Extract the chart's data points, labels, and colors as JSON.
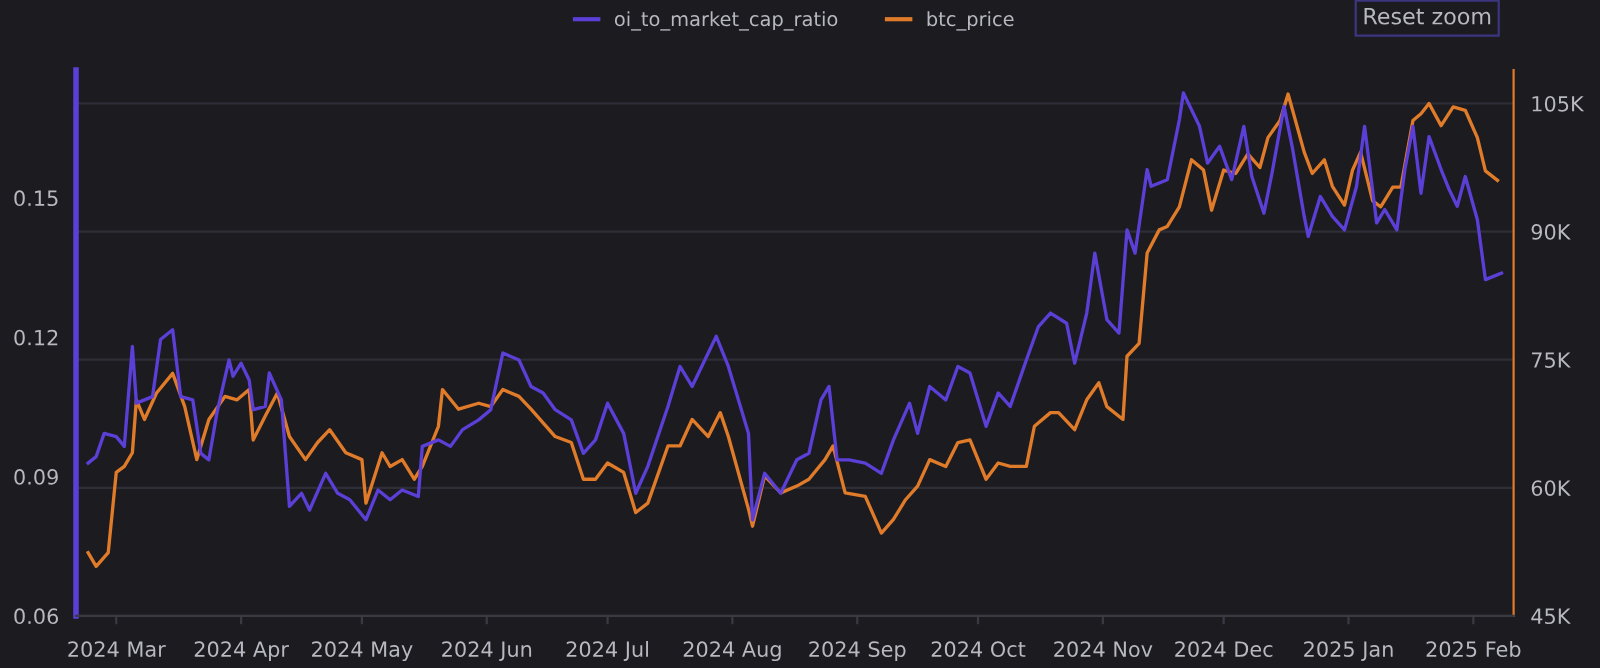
{
  "chart_data": {
    "type": "line",
    "annotations": [
      "Reset zoom"
    ],
    "legend": "top",
    "grid": "y2",
    "line_style": "solid",
    "marker": "none",
    "xlim": [
      "2024-02-20",
      "2025-02-11"
    ],
    "xticks": [
      {
        "value": "2024-03-01",
        "label": "2024 Mar"
      },
      {
        "value": "2024-04-01",
        "label": "2024 Apr"
      },
      {
        "value": "2024-05-01",
        "label": "2024 May"
      },
      {
        "value": "2024-06-01",
        "label": "2024 Jun"
      },
      {
        "value": "2024-07-01",
        "label": "2024 Jul"
      },
      {
        "value": "2024-08-01",
        "label": "2024 Aug"
      },
      {
        "value": "2024-09-01",
        "label": "2024 Sep"
      },
      {
        "value": "2024-10-01",
        "label": "2024 Oct"
      },
      {
        "value": "2024-11-01",
        "label": "2024 Nov"
      },
      {
        "value": "2024-12-01",
        "label": "2024 Dec"
      },
      {
        "value": "2025-01-01",
        "label": "2025 Jan"
      },
      {
        "value": "2025-02-01",
        "label": "2025 Feb"
      }
    ],
    "ylim": [
      0.06,
      0.1775
    ],
    "yticks": [
      0.06,
      0.09,
      0.12,
      0.15
    ],
    "y2lim": [
      45000,
      108900
    ],
    "y2ticks": [
      {
        "value": 45000,
        "label": "45K"
      },
      {
        "value": 60000,
        "label": "60K"
      },
      {
        "value": 75000,
        "label": "75K"
      },
      {
        "value": 90000,
        "label": "90K"
      },
      {
        "value": 105000,
        "label": "105K"
      }
    ],
    "series": [
      {
        "name": "oi_to_market_cap_ratio",
        "color": "#5b3fd6",
        "axis": "y",
        "x": [
          "2024-02-23",
          "2024-02-25",
          "2024-02-27",
          "2024-03-01",
          "2024-03-03",
          "2024-03-05",
          "2024-03-06",
          "2024-03-10",
          "2024-03-12",
          "2024-03-15",
          "2024-03-17",
          "2024-03-20",
          "2024-03-22",
          "2024-03-24",
          "2024-03-26",
          "2024-03-29",
          "2024-03-30",
          "2024-04-01",
          "2024-04-03",
          "2024-04-04",
          "2024-04-07",
          "2024-04-08",
          "2024-04-11",
          "2024-04-13",
          "2024-04-16",
          "2024-04-18",
          "2024-04-22",
          "2024-04-25",
          "2024-04-28",
          "2024-05-02",
          "2024-05-05",
          "2024-05-08",
          "2024-05-11",
          "2024-05-15",
          "2024-05-16",
          "2024-05-20",
          "2024-05-23",
          "2024-05-26",
          "2024-05-30",
          "2024-06-02",
          "2024-06-05",
          "2024-06-09",
          "2024-06-12",
          "2024-06-15",
          "2024-06-18",
          "2024-06-22",
          "2024-06-25",
          "2024-06-28",
          "2024-07-01",
          "2024-07-05",
          "2024-07-08",
          "2024-07-11",
          "2024-07-16",
          "2024-07-19",
          "2024-07-22",
          "2024-07-26",
          "2024-07-28",
          "2024-07-31",
          "2024-08-05",
          "2024-08-06",
          "2024-08-09",
          "2024-08-13",
          "2024-08-17",
          "2024-08-20",
          "2024-08-23",
          "2024-08-25",
          "2024-08-27",
          "2024-08-30",
          "2024-09-03",
          "2024-09-07",
          "2024-09-10",
          "2024-09-14",
          "2024-09-16",
          "2024-09-19",
          "2024-09-23",
          "2024-09-26",
          "2024-09-29",
          "2024-10-03",
          "2024-10-06",
          "2024-10-09",
          "2024-10-13",
          "2024-10-16",
          "2024-10-19",
          "2024-10-23",
          "2024-10-25",
          "2024-10-28",
          "2024-10-30",
          "2024-11-02",
          "2024-11-05",
          "2024-11-07",
          "2024-11-09",
          "2024-11-12",
          "2024-11-13",
          "2024-11-17",
          "2024-11-20",
          "2024-11-21",
          "2024-11-25",
          "2024-11-27",
          "2024-11-30",
          "2024-12-03",
          "2024-12-06",
          "2024-12-08",
          "2024-12-11",
          "2024-12-13",
          "2024-12-16",
          "2024-12-18",
          "2024-12-21",
          "2024-12-22",
          "2024-12-25",
          "2024-12-28",
          "2024-12-31",
          "2025-01-03",
          "2025-01-05",
          "2025-01-08",
          "2025-01-10",
          "2025-01-13",
          "2025-01-15",
          "2025-01-17",
          "2025-01-19",
          "2025-01-21",
          "2025-01-24",
          "2025-01-26",
          "2025-01-28",
          "2025-01-30",
          "2025-02-02",
          "2025-02-04",
          "2025-02-06",
          "2025-02-08"
        ],
        "values": [
          0.0929,
          0.0943,
          0.0993,
          0.0986,
          0.0965,
          0.118,
          0.1058,
          0.1072,
          0.1195,
          0.1216,
          0.1072,
          0.1065,
          0.095,
          0.0936,
          0.1037,
          0.1151,
          0.1116,
          0.1144,
          0.1108,
          0.1044,
          0.1051,
          0.1123,
          0.1065,
          0.0836,
          0.0864,
          0.0828,
          0.0907,
          0.0864,
          0.085,
          0.0807,
          0.0871,
          0.085,
          0.0871,
          0.0857,
          0.0965,
          0.0979,
          0.0965,
          0.1001,
          0.1022,
          0.1044,
          0.1166,
          0.1151,
          0.1094,
          0.108,
          0.1044,
          0.1022,
          0.095,
          0.0979,
          0.1058,
          0.0993,
          0.0864,
          0.0922,
          0.1051,
          0.1137,
          0.1094,
          0.1166,
          0.1202,
          0.1137,
          0.0993,
          0.0807,
          0.0907,
          0.0864,
          0.0936,
          0.095,
          0.1065,
          0.1094,
          0.0936,
          0.0936,
          0.0929,
          0.0907,
          0.0979,
          0.1058,
          0.0993,
          0.1094,
          0.1065,
          0.1137,
          0.1123,
          0.1008,
          0.108,
          0.1051,
          0.1151,
          0.1223,
          0.1252,
          0.123,
          0.1144,
          0.1252,
          0.1381,
          0.1238,
          0.1209,
          0.1431,
          0.1381,
          0.1561,
          0.1525,
          0.1539,
          0.1668,
          0.1726,
          0.1654,
          0.1575,
          0.1611,
          0.1539,
          0.1654,
          0.1546,
          0.1467,
          0.1553,
          0.1697,
          0.1611,
          0.146,
          0.1417,
          0.1503,
          0.146,
          0.1431,
          0.1525,
          0.1654,
          0.1446,
          0.1475,
          0.1431,
          0.1561,
          0.1654,
          0.151,
          0.1632,
          0.1561,
          0.1518,
          0.1482,
          0.1546,
          0.1453,
          0.1324,
          0.1331,
          0.1338
        ]
      },
      {
        "name": "btc_price",
        "color": "#e07b2a",
        "axis": "y2",
        "x": [
          "2024-02-23",
          "2024-02-25",
          "2024-02-28",
          "2024-03-01",
          "2024-03-03",
          "2024-03-05",
          "2024-03-06",
          "2024-03-08",
          "2024-03-11",
          "2024-03-15",
          "2024-03-18",
          "2024-03-21",
          "2024-03-24",
          "2024-03-28",
          "2024-03-31",
          "2024-04-03",
          "2024-04-04",
          "2024-04-07",
          "2024-04-10",
          "2024-04-13",
          "2024-04-17",
          "2024-04-20",
          "2024-04-23",
          "2024-04-27",
          "2024-05-01",
          "2024-05-02",
          "2024-05-06",
          "2024-05-08",
          "2024-05-11",
          "2024-05-14",
          "2024-05-16",
          "2024-05-20",
          "2024-05-21",
          "2024-05-25",
          "2024-05-30",
          "2024-06-02",
          "2024-06-05",
          "2024-06-09",
          "2024-06-12",
          "2024-06-15",
          "2024-06-18",
          "2024-06-22",
          "2024-06-25",
          "2024-06-28",
          "2024-07-01",
          "2024-07-05",
          "2024-07-08",
          "2024-07-11",
          "2024-07-16",
          "2024-07-19",
          "2024-07-22",
          "2024-07-26",
          "2024-07-29",
          "2024-07-31",
          "2024-08-05",
          "2024-08-06",
          "2024-08-09",
          "2024-08-13",
          "2024-08-17",
          "2024-08-20",
          "2024-08-24",
          "2024-08-26",
          "2024-08-29",
          "2024-09-03",
          "2024-09-07",
          "2024-09-10",
          "2024-09-13",
          "2024-09-16",
          "2024-09-19",
          "2024-09-23",
          "2024-09-26",
          "2024-09-29",
          "2024-10-03",
          "2024-10-06",
          "2024-10-09",
          "2024-10-13",
          "2024-10-15",
          "2024-10-19",
          "2024-10-21",
          "2024-10-25",
          "2024-10-28",
          "2024-10-31",
          "2024-11-02",
          "2024-11-06",
          "2024-11-07",
          "2024-11-10",
          "2024-11-12",
          "2024-11-15",
          "2024-11-17",
          "2024-11-20",
          "2024-11-23",
          "2024-11-26",
          "2024-11-28",
          "2024-12-01",
          "2024-12-04",
          "2024-12-07",
          "2024-12-10",
          "2024-12-12",
          "2024-12-15",
          "2024-12-17",
          "2024-12-21",
          "2024-12-23",
          "2024-12-26",
          "2024-12-28",
          "2024-12-31",
          "2025-01-02",
          "2025-01-04",
          "2025-01-07",
          "2025-01-09",
          "2025-01-12",
          "2025-01-14",
          "2025-01-17",
          "2025-01-19",
          "2025-01-21",
          "2025-01-24",
          "2025-01-27",
          "2025-01-30",
          "2025-02-02",
          "2025-02-04",
          "2025-02-07"
        ],
        "values": [
          52400,
          50800,
          52400,
          61800,
          62500,
          64100,
          70300,
          68000,
          71100,
          73400,
          69500,
          63300,
          68000,
          70700,
          70300,
          71500,
          65600,
          68400,
          71100,
          66000,
          63300,
          65300,
          66800,
          64100,
          63300,
          58200,
          64100,
          62500,
          63300,
          61000,
          62500,
          67200,
          71500,
          69200,
          69900,
          69500,
          71500,
          70700,
          69200,
          67600,
          66000,
          65300,
          61000,
          61000,
          62900,
          61800,
          57100,
          58200,
          64900,
          64900,
          68000,
          66000,
          68800,
          66000,
          57500,
          55500,
          61400,
          59400,
          60200,
          61000,
          63300,
          64900,
          59400,
          59000,
          54700,
          56300,
          58600,
          60200,
          63300,
          62500,
          65300,
          65600,
          61000,
          62900,
          62500,
          62500,
          67200,
          68800,
          68800,
          66800,
          70300,
          72300,
          69500,
          68000,
          75400,
          76900,
          87500,
          90200,
          90600,
          92900,
          98400,
          97200,
          92500,
          97200,
          96800,
          99100,
          97500,
          101000,
          103000,
          106100,
          99300,
          96800,
          98400,
          95300,
          93100,
          97200,
          99300,
          93600,
          92900,
          95200,
          95200,
          103000,
          103800,
          105000,
          102400,
          104600,
          104200,
          101000,
          97100,
          96000
        ]
      }
    ]
  }
}
